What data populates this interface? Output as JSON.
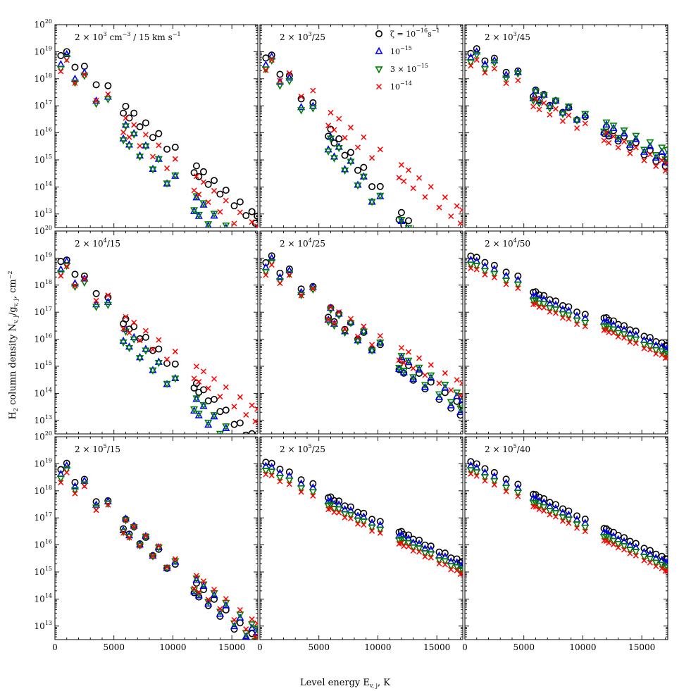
{
  "figure": {
    "xlabel": "Level energy E",
    "xlabel_sub": "v, j",
    "xlabel_unit": ", K",
    "ylabel_main": "H",
    "ylabel_2": "2",
    "ylabel_mid": " column density N",
    "ylabel_vj": "v, j",
    "ylabel_slash": "/g",
    "ylabel_vj2": "v, j",
    "ylabel_unit": ", cm",
    "ylabel_exp": "−2"
  },
  "legend": {
    "entries": [
      {
        "marker": "circle",
        "color": "#000000",
        "label": "ζ = 10",
        "exp": "−16",
        "unit": "s",
        "unit_exp": "−1"
      },
      {
        "marker": "triangle-up",
        "color": "#0000ff",
        "label": "10",
        "exp": "−15"
      },
      {
        "marker": "triangle-down",
        "color": "#008000",
        "label": "3 × 10",
        "exp": "−15"
      },
      {
        "marker": "x",
        "color": "#ff0000",
        "label": "10",
        "exp": "−14"
      }
    ]
  },
  "chart_data": {
    "type": "scatter",
    "xlim": [
      0,
      17200
    ],
    "ylim_log10": [
      12.5,
      20
    ],
    "x_ticks": [
      0,
      5000,
      10000,
      15000
    ],
    "x_tick_labels": [
      "0",
      "5000",
      "10000",
      "15000"
    ],
    "y_tick_labels": [
      {
        "base": "10",
        "exp": "13"
      },
      {
        "base": "10",
        "exp": "14"
      },
      {
        "base": "10",
        "exp": "15"
      },
      {
        "base": "10",
        "exp": "16"
      },
      {
        "base": "10",
        "exp": "17"
      },
      {
        "base": "10",
        "exp": "18"
      },
      {
        "base": "10",
        "exp": "19"
      },
      {
        "base": "10",
        "exp": "20"
      }
    ],
    "series_names": [
      "ζ=1e-16",
      "1e-15",
      "3e-15",
      "1e-14"
    ],
    "panels": [
      {
        "title_a": "2 × 10",
        "title_a_exp": "3",
        "title_b": " cm",
        "title_b_exp": "−3",
        "title_c": " / 15 km s",
        "title_c_exp": "−1",
        "p": [
          [
            10.0,
            19.5,
            19.0,
            18.0
          ],
          [
            12.5,
            18.3,
            18.5,
            17.3
          ],
          [
            9.0,
            16.6,
            16.7,
            16.6
          ],
          [
            6.5,
            13.5,
            12.5,
            12.5
          ],
          [
            4.0,
            12.8,
            13.0,
            12.5
          ],
          [
            1.5,
            12.5,
            12.5,
            12.3
          ],
          [
            0.5,
            10.5,
            12.0,
            11.5
          ]
        ],
        "slope": [
          1.0,
          1.25,
          1.2,
          1.0
        ]
      },
      {
        "title_a": "2 × 10",
        "title_a_exp": "3",
        "title_b": "/25",
        "title_b_exp": "",
        "title_c": "",
        "title_c_exp": "",
        "p": [
          [
            10.0,
            19.8,
            19.5,
            17.0
          ],
          [
            13.5,
            18.0,
            18.3,
            16.0
          ],
          [
            10.0,
            15.8,
            16.0,
            15.0
          ],
          [
            5.5,
            13.5,
            12.9,
            13.3
          ],
          [
            2.5,
            13.0,
            12.8,
            13.0
          ],
          [
            1.0,
            11.5,
            12.6,
            12.7
          ],
          [
            0.5,
            10.5,
            12.1,
            12.3
          ]
        ],
        "slope": [
          1.4,
          1.45,
          1.4,
          0.9
        ]
      },
      {
        "title_a": "2 × 10",
        "title_a_exp": "3",
        "title_b": "/45",
        "title_b_exp": "",
        "title_c": "",
        "title_c_exp": "",
        "p": [
          [
            19.0,
            19.8,
            19.5,
            19.5
          ],
          [
            16.0,
            16.5,
            16.0,
            16.5
          ],
          [
            8.0,
            8.8,
            10.5,
            9.0
          ],
          [
            3.5,
            4.0,
            5.5,
            5.0
          ],
          [
            1.5,
            2.2,
            3.0,
            2.5
          ],
          [
            0.6,
            1.0,
            1.5,
            1.1
          ],
          [
            0.3,
            0.7,
            1.2,
            0.8
          ]
        ],
        "slope": [
          0.65,
          0.6,
          0.55,
          0.6
        ]
      },
      {
        "title_a": "2 × 10",
        "title_a_exp": "4",
        "title_b": "/15",
        "title_b_exp": "",
        "title_c": "",
        "title_c_exp": "",
        "p": [
          [
            9.0,
            19.0,
            19.5,
            17.5
          ],
          [
            9.0,
            18.2,
            18.5,
            17.5
          ],
          [
            7.0,
            14.5,
            13.5,
            14.0
          ],
          [
            2.5,
            12.5,
            12.3,
            12.5
          ],
          [
            1.0,
            12.0,
            11.8,
            12.4
          ],
          [
            0.5,
            11.0,
            11.5,
            12.2
          ],
          [
            0.3,
            10.5,
            11.0,
            12.0
          ]
        ],
        "slope": [
          1.1,
          1.2,
          1.15,
          0.85
        ]
      },
      {
        "title_a": "2 × 10",
        "title_a_exp": "4",
        "title_b": "/25",
        "title_b_exp": "",
        "title_c": "",
        "title_c_exp": "",
        "p": [
          [
            15.0,
            16.0,
            16.5,
            15.5
          ],
          [
            14.5,
            15.0,
            14.8,
            14.8
          ],
          [
            11.5,
            13.8,
            13.8,
            14.0
          ],
          [
            3.5,
            8.5,
            10.0,
            11.5
          ],
          [
            1.5,
            5.0,
            6.0,
            7.0
          ],
          [
            0.7,
            2.0,
            3.0,
            4.0
          ],
          [
            0.4,
            1.2,
            1.8,
            2.5
          ]
        ],
        "slope": [
          0.9,
          0.85,
          0.8,
          0.7
        ]
      },
      {
        "title_a": "2 × 10",
        "title_a_exp": "4",
        "title_b": "/50",
        "title_b_exp": "",
        "title_c": "",
        "title_c_exp": "",
        "p": [
          [
            14.0,
            14.0,
            14.0,
            14.0
          ],
          [
            2.0,
            2.0,
            2.0,
            2.0
          ],
          [
            1.5,
            1.5,
            1.5,
            1.5
          ],
          [
            1.0,
            1.0,
            1.0,
            1.0
          ],
          [
            0.8,
            0.8,
            0.8,
            0.8
          ],
          [
            0.6,
            0.6,
            0.6,
            0.6
          ],
          [
            0.35,
            0.35,
            0.35,
            0.35
          ]
        ],
        "slope": [
          0.55,
          0.55,
          0.55,
          0.55
        ]
      },
      {
        "title_a": "2 × 10",
        "title_a_exp": "5",
        "title_b": "/15",
        "title_b_exp": "",
        "title_c": "",
        "title_c_exp": "",
        "p": [
          [
            3.5,
            2.8,
            2.6,
            2.0
          ],
          [
            3.0,
            2.5,
            2.4,
            2.0
          ],
          [
            12.0,
            14.0,
            14.0,
            15.0
          ],
          [
            1.5,
            6.0,
            7.0,
            8.0
          ],
          [
            0.8,
            3.0,
            3.5,
            4.5
          ],
          [
            0.5,
            1.5,
            1.8,
            2.5
          ],
          [
            0.4,
            0.8,
            1.0,
            1.5
          ]
        ],
        "slope": [
          1.1,
          1.05,
          1.0,
          0.95
        ]
      },
      {
        "title_a": "2 × 10",
        "title_a_exp": "5",
        "title_b": "/25",
        "title_b_exp": "",
        "title_c": "",
        "title_c_exp": "",
        "p": [
          [
            7.0,
            6.5,
            6.3,
            6.0
          ],
          [
            6.0,
            5.5,
            5.3,
            5.0
          ],
          [
            2.0,
            2.0,
            2.0,
            2.0
          ],
          [
            1.2,
            1.2,
            1.2,
            1.2
          ],
          [
            0.7,
            0.7,
            0.7,
            0.7
          ],
          [
            0.35,
            0.35,
            0.35,
            0.35
          ],
          [
            0.15,
            0.15,
            0.15,
            0.15
          ]
        ],
        "slope": [
          0.6,
          0.6,
          0.6,
          0.6
        ]
      },
      {
        "title_a": "2 × 10",
        "title_a_exp": "5",
        "title_b": "/40",
        "title_b_exp": "",
        "title_c": "",
        "title_c_exp": "",
        "p": [
          [
            2.2,
            2.2,
            2.2,
            2.2
          ],
          [
            1.0,
            1.0,
            1.0,
            1.0
          ],
          [
            0.8,
            0.8,
            0.8,
            0.8
          ],
          [
            0.6,
            0.6,
            0.6,
            0.6
          ],
          [
            0.4,
            0.4,
            0.4,
            0.4
          ],
          [
            0.25,
            0.25,
            0.25,
            0.25
          ],
          [
            0.1,
            0.1,
            0.1,
            0.1
          ]
        ],
        "slope": [
          0.6,
          0.6,
          0.6,
          0.6
        ]
      }
    ]
  }
}
